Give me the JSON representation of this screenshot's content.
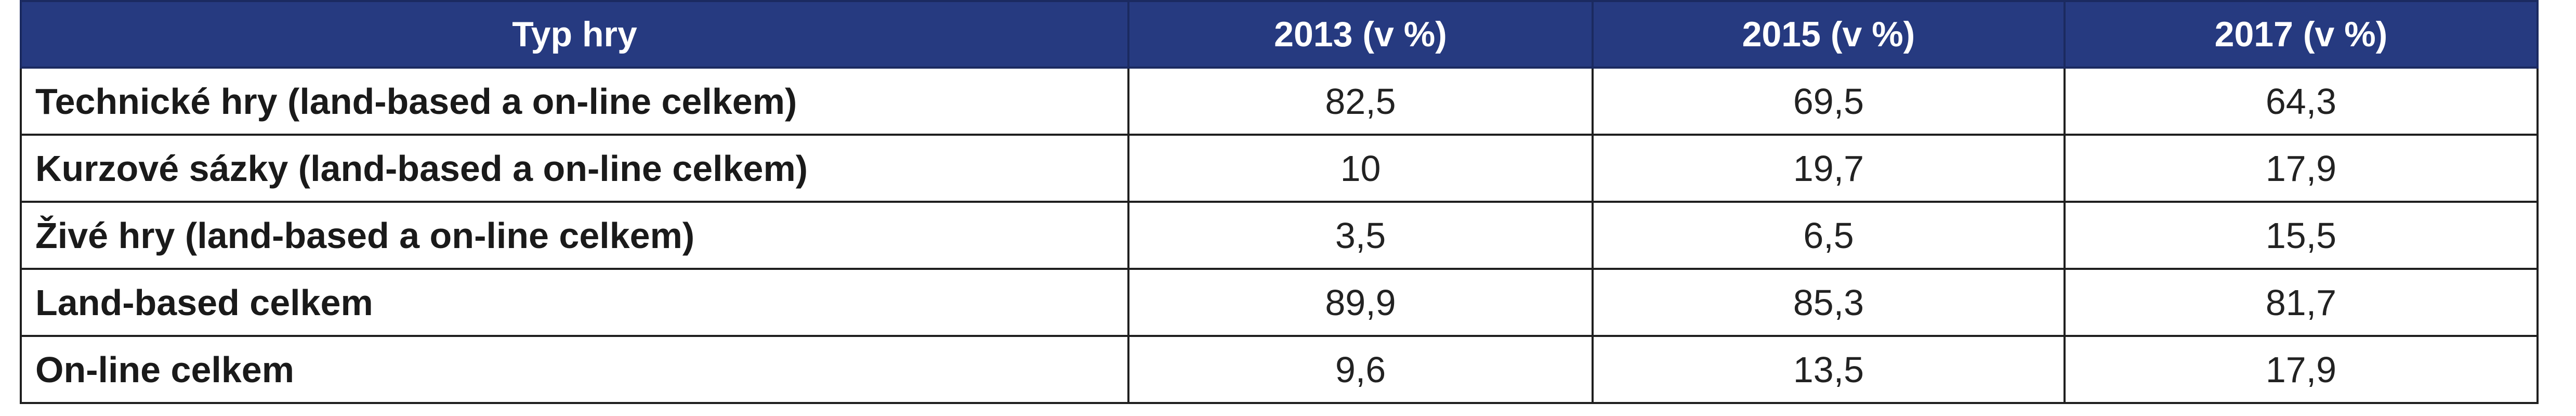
{
  "table": {
    "headers": [
      "Typ hry",
      "2013 (v %)",
      "2015 (v %)",
      "2017 (v %)"
    ],
    "rows": [
      {
        "label": "Technické hry (land-based a on-line celkem)",
        "values": [
          "82,5",
          "69,5",
          "64,3"
        ]
      },
      {
        "label": "Kurzové sázky (land-based a on-line celkem)",
        "values": [
          "10",
          "19,7",
          "17,9"
        ]
      },
      {
        "label": "Živé hry (land-based a on-line celkem)",
        "values": [
          "3,5",
          "6,5",
          "15,5"
        ]
      },
      {
        "label": "Land-based celkem",
        "values": [
          "89,9",
          "85,3",
          "81,7"
        ]
      },
      {
        "label": "On-line celkem",
        "values": [
          "9,6",
          "13,5",
          "17,9"
        ]
      }
    ]
  },
  "colors": {
    "header_bg": "#263a80",
    "header_text": "#ffffff",
    "border": "#1f1f1f"
  }
}
